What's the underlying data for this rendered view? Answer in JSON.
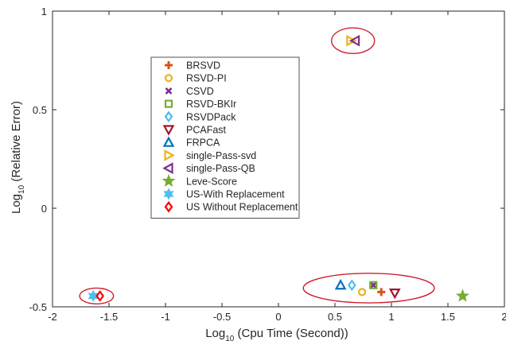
{
  "chart_data": {
    "type": "scatter",
    "title": "",
    "xlabel": {
      "prefix": "Log",
      "sub": "10",
      "rest": " (Cpu Time (Second))"
    },
    "ylabel": {
      "prefix": "Log",
      "sub": "10",
      "rest": " (Relative Error)"
    },
    "xlim": [
      -2,
      2
    ],
    "ylim": [
      -0.5,
      1
    ],
    "xticks": [
      -2,
      -1.5,
      -1,
      -0.5,
      0,
      0.5,
      1,
      1.5,
      2
    ],
    "xtick_labels": [
      "-2",
      "-1.5",
      "-1",
      "-0.5",
      "0",
      "0.5",
      "1",
      "1.5",
      "2"
    ],
    "yticks": [
      -0.5,
      0,
      0.5,
      1
    ],
    "ytick_labels": [
      "-0.5",
      "0",
      "0.5",
      "1"
    ],
    "grid": false,
    "legend_position": "upper-left-center",
    "series": [
      {
        "name": "BRSVD",
        "marker": "plus",
        "color": "#D95319",
        "x": 0.91,
        "y": -0.425
      },
      {
        "name": "RSVD-PI",
        "marker": "circle",
        "color": "#EDB120",
        "x": 0.74,
        "y": -0.425
      },
      {
        "name": "CSVD",
        "marker": "x",
        "color": "#7E2F8E",
        "x": 0.84,
        "y": -0.39
      },
      {
        "name": "RSVD-BKIr",
        "marker": "square",
        "color": "#77AC30",
        "x": 0.84,
        "y": -0.39
      },
      {
        "name": "RSVDPack",
        "marker": "diamond",
        "color": "#4DBEEE",
        "x": 0.65,
        "y": -0.39
      },
      {
        "name": "PCAFast",
        "marker": "triangle-down",
        "color": "#A2142F",
        "x": 1.03,
        "y": -0.43
      },
      {
        "name": "FRPCA",
        "marker": "triangle-up",
        "color": "#0072BD",
        "x": 0.55,
        "y": -0.39
      },
      {
        "name": "single-Pass-svd",
        "marker": "triangle-right",
        "color": "#EDB120",
        "x": 0.64,
        "y": 0.85
      },
      {
        "name": "single-Pass-QB",
        "marker": "triangle-left",
        "color": "#7E2F8E",
        "x": 0.68,
        "y": 0.85
      },
      {
        "name": "Leve-Score",
        "marker": "star",
        "color": "#77AC30",
        "x": 1.63,
        "y": -0.445
      },
      {
        "name": "US-With Replacement",
        "marker": "hexagram",
        "color": "#4DBEEE",
        "x": -1.64,
        "y": -0.445
      },
      {
        "name": "US Without Replacement",
        "marker": "diamond",
        "color": "#FF0000",
        "x": -1.58,
        "y": -0.445
      }
    ],
    "highlight_ellipses": [
      {
        "cx": 0.66,
        "cy": 0.85,
        "rx": 0.19,
        "ry": 0.065
      },
      {
        "cx": 0.8,
        "cy": -0.405,
        "rx": 0.58,
        "ry": 0.075
      },
      {
        "cx": -1.61,
        "cy": -0.445,
        "rx": 0.15,
        "ry": 0.04
      }
    ],
    "ellipse_color": "#D0202E"
  }
}
